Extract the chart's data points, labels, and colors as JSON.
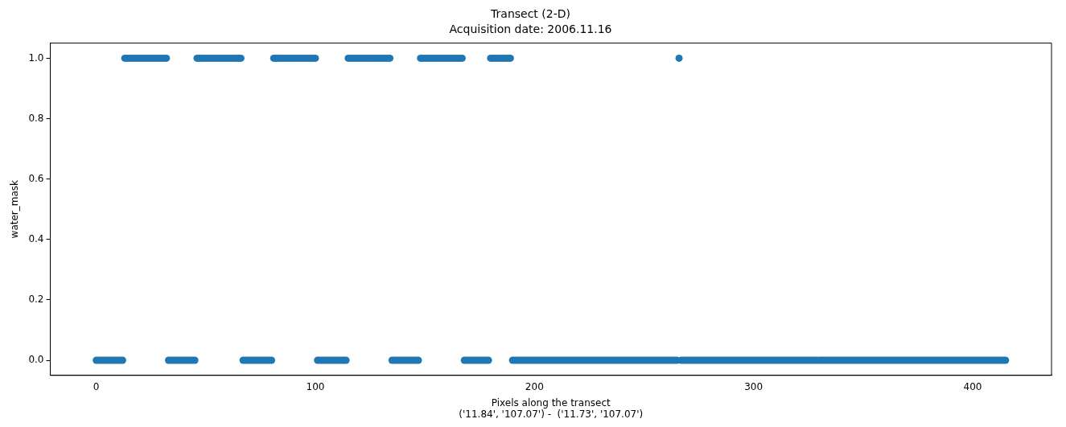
{
  "chart_data": {
    "type": "scatter",
    "title": "Transect (2-D)",
    "subtitle": "Acquisition date: 2006.11.16",
    "xlabel": "Pixels along the transect\n('11.84', '107.07') -  ('11.73', '107.07')",
    "ylabel": "water_mask",
    "color": "#1f77b4",
    "marker": "circle",
    "grid": false,
    "xlim": [
      -21,
      436
    ],
    "xticks": [
      0,
      100,
      200,
      300,
      400
    ],
    "ylim": [
      -0.05,
      1.05
    ],
    "yticks": [
      {
        "value": 0,
        "label": "0.0"
      },
      {
        "value": 0.2,
        "label": "0.2"
      },
      {
        "value": 0.4,
        "label": "0.4"
      },
      {
        "value": 0.6,
        "label": "0.6"
      },
      {
        "value": 0.8,
        "label": "0.8"
      },
      {
        "value": 1,
        "label": "1.0"
      }
    ],
    "x": [
      0,
      1,
      2,
      3,
      4,
      5,
      6,
      7,
      8,
      9,
      10,
      11,
      12,
      13,
      14,
      15,
      16,
      17,
      18,
      19,
      20,
      21,
      22,
      23,
      24,
      25,
      26,
      27,
      28,
      29,
      30,
      31,
      32,
      33,
      34,
      35,
      36,
      37,
      38,
      39,
      40,
      41,
      42,
      43,
      44,
      45,
      46,
      47,
      48,
      49,
      50,
      51,
      52,
      53,
      54,
      55,
      56,
      57,
      58,
      59,
      60,
      61,
      62,
      63,
      64,
      65,
      66,
      67,
      68,
      69,
      70,
      71,
      72,
      73,
      74,
      75,
      76,
      77,
      78,
      79,
      80,
      81,
      82,
      83,
      84,
      85,
      86,
      87,
      88,
      89,
      90,
      91,
      92,
      93,
      94,
      95,
      96,
      97,
      98,
      99,
      100,
      101,
      102,
      103,
      104,
      105,
      106,
      107,
      108,
      109,
      110,
      111,
      112,
      113,
      114,
      115,
      116,
      117,
      118,
      119,
      120,
      121,
      122,
      123,
      124,
      125,
      126,
      127,
      128,
      129,
      130,
      131,
      132,
      133,
      134,
      135,
      136,
      137,
      138,
      139,
      140,
      141,
      142,
      143,
      144,
      145,
      146,
      147,
      148,
      149,
      150,
      151,
      152,
      153,
      154,
      155,
      156,
      157,
      158,
      159,
      160,
      161,
      162,
      163,
      164,
      165,
      166,
      167,
      168,
      169,
      170,
      171,
      172,
      173,
      174,
      175,
      176,
      177,
      178,
      179,
      180,
      181,
      182,
      183,
      184,
      185,
      186,
      187,
      188,
      189,
      190,
      191,
      192,
      193,
      194,
      195,
      196,
      197,
      198,
      199,
      200,
      201,
      202,
      203,
      204,
      205,
      206,
      207,
      208,
      209,
      210,
      211,
      212,
      213,
      214,
      215,
      216,
      217,
      218,
      219,
      220,
      221,
      222,
      223,
      224,
      225,
      226,
      227,
      228,
      229,
      230,
      231,
      232,
      233,
      234,
      235,
      236,
      237,
      238,
      239,
      240,
      241,
      242,
      243,
      244,
      245,
      246,
      247,
      248,
      249,
      250,
      251,
      252,
      253,
      254,
      255,
      256,
      257,
      258,
      259,
      260,
      261,
      262,
      263,
      264,
      265,
      266,
      267,
      268,
      269,
      270,
      271,
      272,
      273,
      274,
      275,
      276,
      277,
      278,
      279,
      280,
      281,
      282,
      283,
      284,
      285,
      286,
      287,
      288,
      289,
      290,
      291,
      292,
      293,
      294,
      295,
      296,
      297,
      298,
      299,
      300,
      301,
      302,
      303,
      304,
      305,
      306,
      307,
      308,
      309,
      310,
      311,
      312,
      313,
      314,
      315,
      316,
      317,
      318,
      319,
      320,
      321,
      322,
      323,
      324,
      325,
      326,
      327,
      328,
      329,
      330,
      331,
      332,
      333,
      334,
      335,
      336,
      337,
      338,
      339,
      340,
      341,
      342,
      343,
      344,
      345,
      346,
      347,
      348,
      349,
      350,
      351,
      352,
      353,
      354,
      355,
      356,
      357,
      358,
      359,
      360,
      361,
      362,
      363,
      364,
      365,
      366,
      367,
      368,
      369,
      370,
      371,
      372,
      373,
      374,
      375,
      376,
      377,
      378,
      379,
      380,
      381,
      382,
      383,
      384,
      385,
      386,
      387,
      388,
      389,
      390,
      391,
      392,
      393,
      394,
      395,
      396,
      397,
      398,
      399,
      400,
      401,
      402,
      403,
      404,
      405,
      406,
      407,
      408,
      409,
      410,
      411,
      412,
      413,
      414,
      415
    ],
    "values": [
      0,
      0,
      0,
      0,
      0,
      0,
      0,
      0,
      0,
      0,
      0,
      0,
      0,
      1,
      1,
      1,
      1,
      1,
      1,
      1,
      1,
      1,
      1,
      1,
      1,
      1,
      1,
      1,
      1,
      1,
      1,
      1,
      1,
      0,
      0,
      0,
      0,
      0,
      0,
      0,
      0,
      0,
      0,
      0,
      0,
      0,
      1,
      1,
      1,
      1,
      1,
      1,
      1,
      1,
      1,
      1,
      1,
      1,
      1,
      1,
      1,
      1,
      1,
      1,
      1,
      1,
      1,
      0,
      0,
      0,
      0,
      0,
      0,
      0,
      0,
      0,
      0,
      0,
      0,
      0,
      0,
      1,
      1,
      1,
      1,
      1,
      1,
      1,
      1,
      1,
      1,
      1,
      1,
      1,
      1,
      1,
      1,
      1,
      1,
      1,
      1,
      0,
      0,
      0,
      0,
      0,
      0,
      0,
      0,
      0,
      0,
      0,
      0,
      0,
      0,
      1,
      1,
      1,
      1,
      1,
      1,
      1,
      1,
      1,
      1,
      1,
      1,
      1,
      1,
      1,
      1,
      1,
      1,
      1,
      1,
      0,
      0,
      0,
      0,
      0,
      0,
      0,
      0,
      0,
      0,
      0,
      0,
      0,
      1,
      1,
      1,
      1,
      1,
      1,
      1,
      1,
      1,
      1,
      1,
      1,
      1,
      1,
      1,
      1,
      1,
      1,
      1,
      1,
      0,
      0,
      0,
      0,
      0,
      0,
      0,
      0,
      0,
      0,
      0,
      0,
      1,
      1,
      1,
      1,
      1,
      1,
      1,
      1,
      1,
      1,
      0,
      0,
      0,
      0,
      0,
      0,
      0,
      0,
      0,
      0,
      0,
      0,
      0,
      0,
      0,
      0,
      0,
      0,
      0,
      0,
      0,
      0,
      0,
      0,
      0,
      0,
      0,
      0,
      0,
      0,
      0,
      0,
      0,
      0,
      0,
      0,
      0,
      0,
      0,
      0,
      0,
      0,
      0,
      0,
      0,
      0,
      0,
      0,
      0,
      0,
      0,
      0,
      0,
      0,
      0,
      0,
      0,
      0,
      0,
      0,
      0,
      0,
      0,
      0,
      0,
      0,
      0,
      0,
      0,
      0,
      0,
      0,
      0,
      0,
      0,
      0,
      1,
      0,
      0,
      0,
      0,
      0,
      0,
      0,
      0,
      0,
      0,
      0,
      0,
      0,
      0,
      0,
      0,
      0,
      0,
      0,
      0,
      0,
      0,
      0,
      0,
      0,
      0,
      0,
      0,
      0,
      0,
      0,
      0,
      0,
      0,
      0,
      0,
      0,
      0,
      0,
      0,
      0,
      0,
      0,
      0,
      0,
      0,
      0,
      0,
      0,
      0,
      0,
      0,
      0,
      0,
      0,
      0,
      0,
      0,
      0,
      0,
      0,
      0,
      0,
      0,
      0,
      0,
      0,
      0,
      0,
      0,
      0,
      0,
      0,
      0,
      0,
      0,
      0,
      0,
      0,
      0,
      0,
      0,
      0,
      0,
      0,
      0,
      0,
      0,
      0,
      0,
      0,
      0,
      0,
      0,
      0,
      0,
      0,
      0,
      0,
      0,
      0,
      0,
      0,
      0,
      0,
      0,
      0,
      0,
      0,
      0,
      0,
      0,
      0,
      0,
      0,
      0,
      0,
      0,
      0,
      0,
      0,
      0,
      0,
      0,
      0,
      0,
      0,
      0,
      0,
      0,
      0,
      0,
      0,
      0,
      0,
      0,
      0,
      0,
      0,
      0,
      0,
      0,
      0,
      0,
      0,
      0,
      0,
      0,
      0
    ]
  }
}
